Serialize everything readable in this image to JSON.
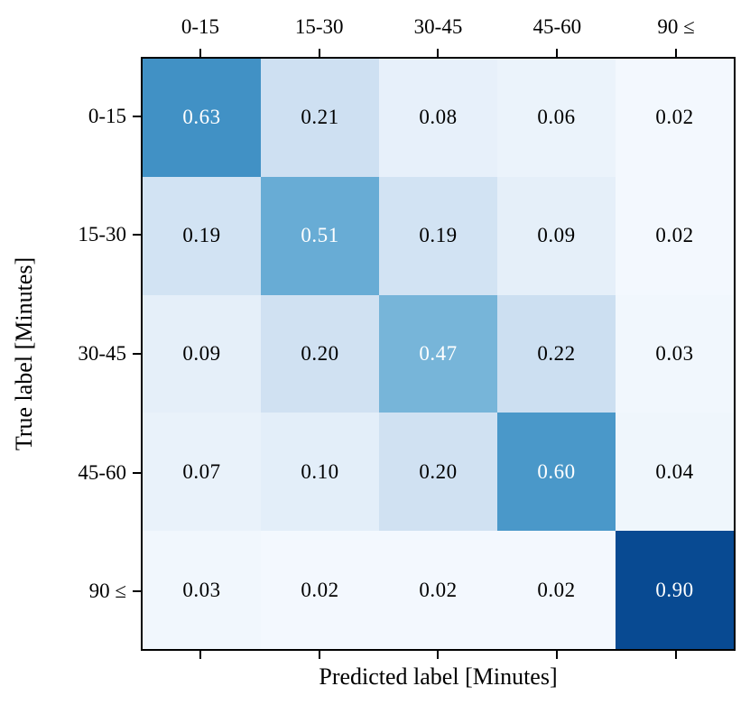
{
  "figure": {
    "background": "#ffffff"
  },
  "chart_data": {
    "type": "heatmap",
    "title": "",
    "xlabel": "Predicted label [Minutes]",
    "ylabel": "True label [Minutes]",
    "x_axis_position": "top",
    "x_categories": [
      "0-15",
      "15-30",
      "30-45",
      "45-60",
      "90 ≤"
    ],
    "y_categories": [
      "0-15",
      "15-30",
      "30-45",
      "45-60",
      "90 ≤"
    ],
    "matrix": [
      [
        0.63,
        0.21,
        0.08,
        0.06,
        0.02
      ],
      [
        0.19,
        0.51,
        0.19,
        0.09,
        0.02
      ],
      [
        0.09,
        0.2,
        0.47,
        0.22,
        0.03
      ],
      [
        0.07,
        0.1,
        0.2,
        0.6,
        0.04
      ],
      [
        0.03,
        0.02,
        0.02,
        0.02,
        0.9
      ]
    ],
    "value_decimals": 2,
    "colormap": "Blues",
    "vmin": 0,
    "vmax": 1,
    "cell_colors": [
      [
        "#4191c5",
        "#cee0f2",
        "#e7f0fa",
        "#ebf3fb",
        "#f3f8fe"
      ],
      [
        "#d2e3f3",
        "#68acd5",
        "#d2e3f3",
        "#e5eff9",
        "#f3f8fe"
      ],
      [
        "#e5eff9",
        "#d0e1f2",
        "#77b5d9",
        "#ccdff1",
        "#f1f7fd"
      ],
      [
        "#e9f2fa",
        "#e3eef9",
        "#d0e1f2",
        "#4a98c9",
        "#eff6fc"
      ],
      [
        "#f1f7fd",
        "#f3f8fe",
        "#f3f8fe",
        "#f3f8fe",
        "#084a92"
      ]
    ],
    "white_text_threshold": 0.45,
    "text_color_dark": "#000000",
    "text_color_light": "#ffffff",
    "axis_color": "#000000",
    "grid": false,
    "legend": "none"
  }
}
